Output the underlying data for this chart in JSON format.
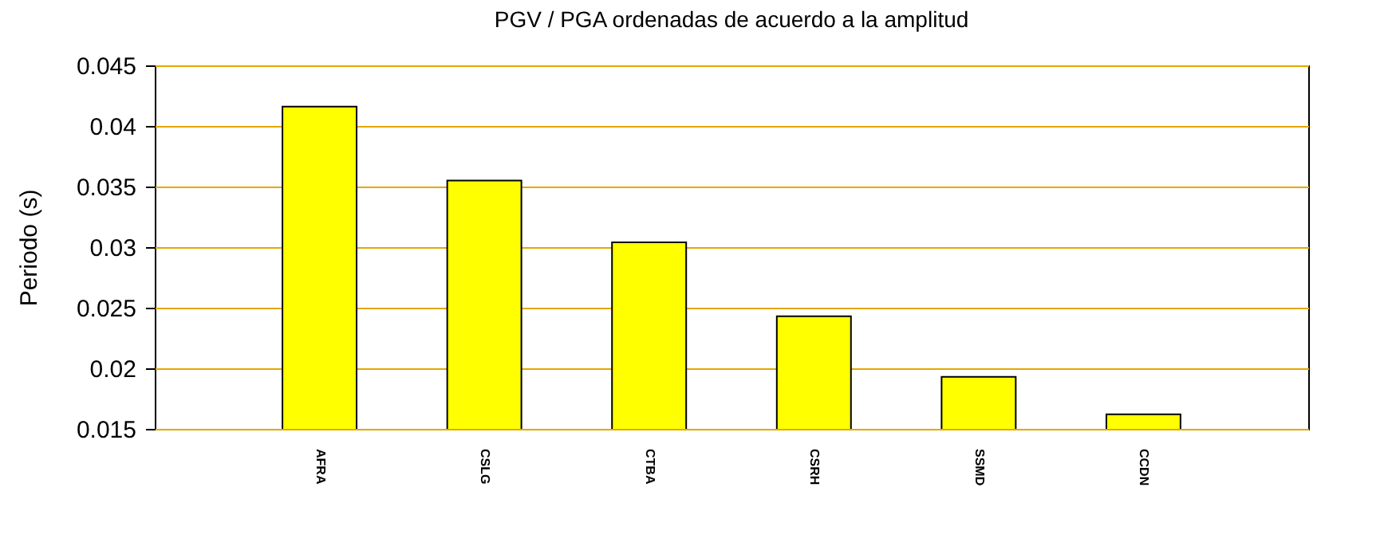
{
  "chart_data": {
    "type": "bar",
    "title": "PGV / PGA ordenadas de acuerdo a la amplitud",
    "ylabel": "Periodo (s)",
    "categories": [
      "AFRA",
      "CSLG",
      "CTBA",
      "CSRH",
      "SSMD",
      "CCDN"
    ],
    "series": [
      {
        "color": "#ffff00",
        "values": [
          0.0416,
          0.0355,
          0.0304,
          0.0243,
          0.0193,
          0.0162
        ]
      }
    ],
    "ylim": [
      0.015,
      0.045
    ],
    "yticks": [
      0.015,
      0.02,
      0.025,
      0.03,
      0.035,
      0.04,
      0.045
    ],
    "grid": "y"
  }
}
